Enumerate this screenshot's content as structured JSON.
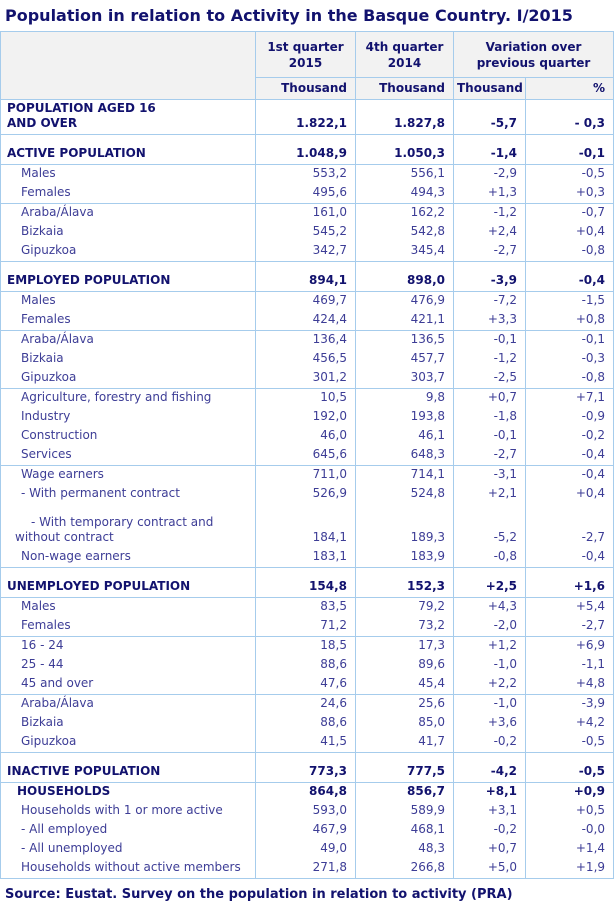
{
  "title": "Population in relation to Activity in the Basque Country. I/2015",
  "source": "Source: Eustat. Survey on the population in relation to activity (PRA)",
  "colors": {
    "navy_text": "#12126E",
    "regular_text": "#3D3D96",
    "table_border": "#A6CCEC",
    "header_background": "#F2F2F2"
  },
  "table": {
    "type": "table",
    "header": {
      "q1_2015": "1st quarter 2015",
      "q4_2014": "4th quarter 2014",
      "variation": "Variation over previous quarter",
      "unit_thousand_q1": "Thousand",
      "unit_thousand_q4": "Thousand",
      "unit_thousand_variation": "Thousand",
      "unit_percent": "%"
    },
    "rows": [
      {
        "lines": [
          "POPULATION AGED 16",
          "AND OVER"
        ],
        "bold": true,
        "indent": 0,
        "values": [
          "1.822,1",
          "1.827,8",
          "-5,7",
          "- 0,3"
        ],
        "group_end": true
      },
      {
        "spacer": true
      },
      {
        "label": "ACTIVE POPULATION",
        "bold": true,
        "indent": 0,
        "values": [
          "1.048,9",
          "1.050,3",
          "-1,4",
          "-0,1"
        ],
        "group_end": true
      },
      {
        "label": "Males",
        "indent": 2,
        "values": [
          "553,2",
          "556,1",
          "-2,9",
          "-0,5"
        ]
      },
      {
        "label": "Females",
        "indent": 2,
        "values": [
          "495,6",
          "494,3",
          "+1,3",
          "+0,3"
        ],
        "group_end": true
      },
      {
        "label": "Araba/Álava",
        "indent": 2,
        "values": [
          "161,0",
          "162,2",
          "-1,2",
          "-0,7"
        ]
      },
      {
        "label": "Bizkaia",
        "indent": 2,
        "values": [
          "545,2",
          "542,8",
          "+2,4",
          "+0,4"
        ]
      },
      {
        "label": "Gipuzkoa",
        "indent": 2,
        "values": [
          "342,7",
          "345,4",
          "-2,7",
          "-0,8"
        ],
        "group_end": true
      },
      {
        "spacer": true
      },
      {
        "label": "EMPLOYED POPULATION",
        "bold": true,
        "indent": 0,
        "values": [
          "894,1",
          "898,0",
          "-3,9",
          "-0,4"
        ],
        "group_end": true
      },
      {
        "label": "Males",
        "indent": 2,
        "values": [
          "469,7",
          "476,9",
          "-7,2",
          "-1,5"
        ]
      },
      {
        "label": "Females",
        "indent": 2,
        "values": [
          "424,4",
          "421,1",
          "+3,3",
          "+0,8"
        ],
        "group_end": true
      },
      {
        "label": "Araba/Álava",
        "indent": 2,
        "values": [
          "136,4",
          "136,5",
          "-0,1",
          "-0,1"
        ]
      },
      {
        "label": "Bizkaia",
        "indent": 2,
        "values": [
          "456,5",
          "457,7",
          "-1,2",
          "-0,3"
        ]
      },
      {
        "label": "Gipuzkoa",
        "indent": 2,
        "values": [
          "301,2",
          "303,7",
          "-2,5",
          "-0,8"
        ],
        "group_end": true
      },
      {
        "label": "Agriculture, forestry and fishing",
        "indent": 2,
        "values": [
          "10,5",
          "9,8",
          "+0,7",
          "+7,1"
        ]
      },
      {
        "label": "Industry",
        "indent": 2,
        "values": [
          "192,0",
          "193,8",
          "-1,8",
          "-0,9"
        ]
      },
      {
        "label": "Construction",
        "indent": 2,
        "values": [
          "46,0",
          "46,1",
          "-0,1",
          "-0,2"
        ]
      },
      {
        "label": "Services",
        "indent": 2,
        "values": [
          "645,6",
          "648,3",
          "-2,7",
          "-0,4"
        ],
        "group_end": true
      },
      {
        "label": "Wage earners",
        "indent": 2,
        "values": [
          "711,0",
          "714,1",
          "-3,1",
          "-0,4"
        ]
      },
      {
        "label": "- With permanent contract",
        "indent": 2,
        "values": [
          "526,9",
          "524,8",
          "+2,1",
          "+0,4"
        ]
      },
      {
        "lines": [
          "- With temporary contract and",
          "without contract"
        ],
        "indent": 2,
        "values": [
          "184,1",
          "189,3",
          "-5,2",
          "-2,7"
        ]
      },
      {
        "label": "Non-wage earners",
        "indent": 2,
        "values": [
          "183,1",
          "183,9",
          "-0,8",
          "-0,4"
        ],
        "group_end": true
      },
      {
        "spacer": true
      },
      {
        "label": "UNEMPLOYED POPULATION",
        "bold": true,
        "indent": 0,
        "values": [
          "154,8",
          "152,3",
          "+2,5",
          "+1,6"
        ],
        "group_end": true
      },
      {
        "label": "Males",
        "indent": 2,
        "values": [
          "83,5",
          "79,2",
          "+4,3",
          "+5,4"
        ]
      },
      {
        "label": "Females",
        "indent": 2,
        "values": [
          "71,2",
          "73,2",
          "-2,0",
          "-2,7"
        ],
        "group_end": true
      },
      {
        "label": "16 - 24",
        "indent": 2,
        "values": [
          "18,5",
          "17,3",
          "+1,2",
          "+6,9"
        ]
      },
      {
        "label": "25 - 44",
        "indent": 2,
        "values": [
          "88,6",
          "89,6",
          "-1,0",
          "-1,1"
        ]
      },
      {
        "label": "45 and over",
        "indent": 2,
        "values": [
          "47,6",
          "45,4",
          "+2,2",
          "+4,8"
        ],
        "group_end": true
      },
      {
        "label": "Araba/Álava",
        "indent": 2,
        "values": [
          "24,6",
          "25,6",
          "-1,0",
          "-3,9"
        ]
      },
      {
        "label": "Bizkaia",
        "indent": 2,
        "values": [
          "88,6",
          "85,0",
          "+3,6",
          "+4,2"
        ]
      },
      {
        "label": "Gipuzkoa",
        "indent": 2,
        "values": [
          "41,5",
          "41,7",
          "-0,2",
          "-0,5"
        ],
        "group_end": true
      },
      {
        "spacer": true
      },
      {
        "label": "INACTIVE POPULATION",
        "bold": true,
        "indent": 0,
        "values": [
          "773,3",
          "777,5",
          "-4,2",
          "-0,5"
        ],
        "group_end": true
      },
      {
        "label": "HOUSEHOLDS",
        "bold": true,
        "indent": 1,
        "values": [
          "864,8",
          "856,7",
          "+8,1",
          "+0,9"
        ]
      },
      {
        "label": "Households with 1 or more active",
        "indent": 2,
        "values": [
          "593,0",
          "589,9",
          "+3,1",
          "+0,5"
        ]
      },
      {
        "label": "- All employed",
        "indent": 2,
        "values": [
          "467,9",
          "468,1",
          "-0,2",
          "-0,0"
        ]
      },
      {
        "label": "- All unemployed",
        "indent": 2,
        "values": [
          "49,0",
          "48,3",
          "+0,7",
          "+1,4"
        ]
      },
      {
        "label": "Households without active members",
        "indent": 2,
        "values": [
          "271,8",
          "266,8",
          "+5,0",
          "+1,9"
        ]
      }
    ]
  }
}
